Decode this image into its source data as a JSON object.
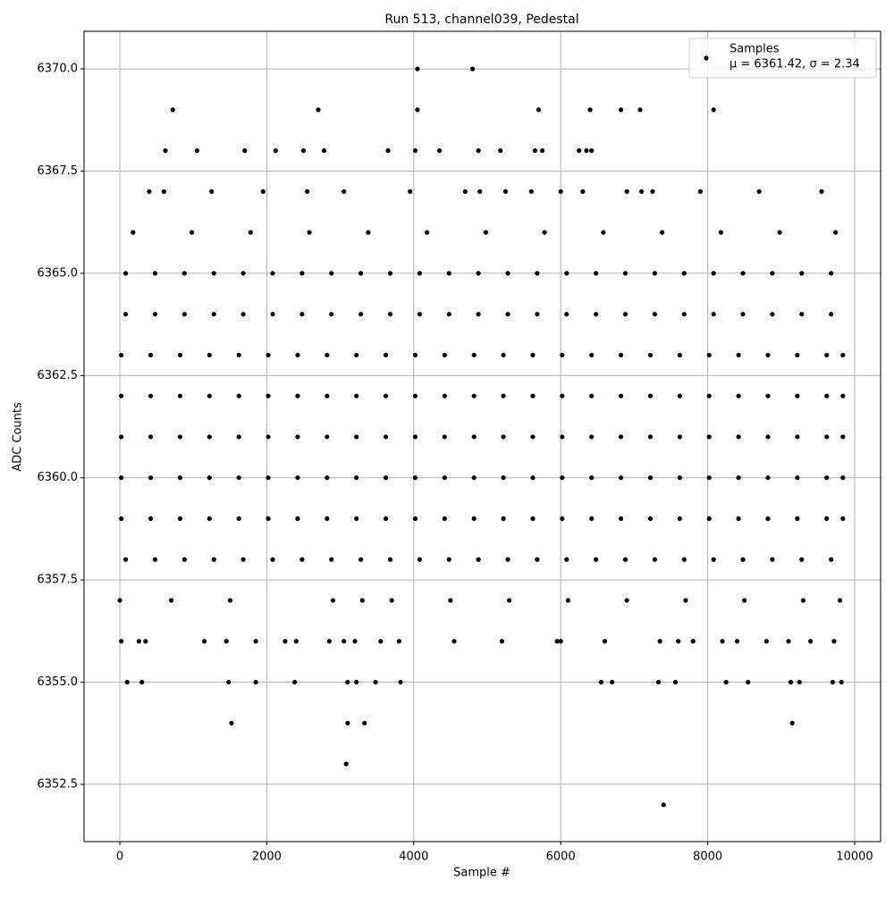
{
  "chart_data": {
    "type": "scatter",
    "title": "Run 513, channel039, Pedestal",
    "x_label": "Sample #",
    "y_label": "ADC Counts",
    "xlim": [
      -487,
      10353
    ],
    "ylim": [
      6351.1,
      6370.92
    ],
    "xticks": [
      0,
      2000,
      4000,
      6000,
      8000,
      10000
    ],
    "yticks": [
      6352.5,
      {
        "value": 6355,
        "label": "6355.0"
      },
      6357.5,
      {
        "value": 6360,
        "label": "6360.0"
      },
      6362.5,
      {
        "value": 6365,
        "label": "6365.0"
      },
      6367.5,
      {
        "value": 6370,
        "label": "6370.0"
      }
    ],
    "grid": true,
    "legend": "upper right",
    "legend_note": "μ = 6361.42, σ = 2.34",
    "x": [
      4050,
      4800,
      720,
      2700,
      4050,
      5700,
      6400,
      6820,
      7080,
      8080,
      620,
      1050,
      1700,
      2120,
      2500,
      2780,
      3650,
      4020,
      4350,
      4880,
      5180,
      5650,
      5750,
      6250,
      6350,
      6420,
      400,
      600,
      1250,
      1950,
      2550,
      3050,
      3950,
      4700,
      4900,
      5250,
      5600,
      6000,
      6300,
      6900,
      7100,
      7250,
      7900,
      8700,
      9550,
      180,
      980,
      1780,
      2580,
      3380,
      4180,
      4980,
      5780,
      6580,
      7380,
      8180,
      8980,
      9740,
      80,
      480,
      880,
      1280,
      1680,
      2080,
      2480,
      2880,
      3280,
      3680,
      4080,
      4480,
      4880,
      5280,
      5680,
      6080,
      6480,
      6880,
      7280,
      7680,
      8080,
      8480,
      8880,
      9280,
      9680,
      80,
      480,
      880,
      1280,
      1680,
      2080,
      2480,
      2880,
      3280,
      3680,
      4080,
      4480,
      4880,
      5280,
      5680,
      6080,
      6480,
      6880,
      7280,
      7680,
      8080,
      8480,
      8880,
      9280,
      9680,
      20,
      420,
      820,
      1220,
      1620,
      2020,
      2420,
      2820,
      3220,
      3620,
      4020,
      4420,
      4820,
      5220,
      5620,
      6020,
      6420,
      6820,
      7220,
      7620,
      8020,
      8420,
      8820,
      9220,
      9620,
      9840,
      20,
      420,
      820,
      1220,
      1620,
      2020,
      2420,
      2820,
      3220,
      3620,
      4020,
      4420,
      4820,
      5220,
      5620,
      6020,
      6420,
      6820,
      7220,
      7620,
      8020,
      8420,
      8820,
      9220,
      9620,
      9840,
      20,
      420,
      820,
      1220,
      1620,
      2020,
      2420,
      2820,
      3220,
      3620,
      4020,
      4420,
      4820,
      5220,
      5620,
      6020,
      6420,
      6820,
      7220,
      7620,
      8020,
      8420,
      8820,
      9220,
      9620,
      9840,
      20,
      420,
      820,
      1220,
      1620,
      2020,
      2420,
      2820,
      3220,
      3620,
      4020,
      4420,
      4820,
      5220,
      5620,
      6020,
      6420,
      6820,
      7220,
      7620,
      8020,
      8420,
      8820,
      9220,
      9620,
      9840,
      20,
      420,
      820,
      1220,
      1620,
      2020,
      2420,
      2820,
      3220,
      3620,
      4020,
      4420,
      4820,
      5220,
      5620,
      6020,
      6420,
      6820,
      7220,
      7620,
      8020,
      8420,
      8820,
      9220,
      9620,
      9840,
      80,
      480,
      880,
      1280,
      1680,
      2080,
      2480,
      2880,
      3280,
      3680,
      4080,
      4480,
      4880,
      5280,
      5680,
      6080,
      6480,
      6880,
      7280,
      7680,
      8080,
      8480,
      8880,
      9280,
      9680,
      0,
      700,
      1500,
      2900,
      3300,
      3700,
      4500,
      5300,
      6100,
      6900,
      7700,
      8500,
      9300,
      9800,
      20,
      260,
      350,
      1150,
      1450,
      1850,
      2250,
      2400,
      2850,
      3050,
      3200,
      3550,
      3800,
      4550,
      5200,
      5950,
      6000,
      6600,
      7350,
      7600,
      7800,
      8200,
      8400,
      8800,
      9100,
      9400,
      9720,
      100,
      300,
      1480,
      1850,
      2380,
      3100,
      3220,
      3480,
      3820,
      6550,
      6700,
      7330,
      7560,
      8250,
      8550,
      9130,
      9250,
      9700,
      9820,
      1520,
      3100,
      3330,
      9150,
      3080,
      7400
    ],
    "series": [
      {
        "name": "Samples",
        "color": "#000000",
        "values": [
          6370,
          6370,
          6369,
          6369,
          6369,
          6369,
          6369,
          6369,
          6369,
          6369,
          6368,
          6368,
          6368,
          6368,
          6368,
          6368,
          6368,
          6368,
          6368,
          6368,
          6368,
          6368,
          6368,
          6368,
          6368,
          6368,
          6367,
          6367,
          6367,
          6367,
          6367,
          6367,
          6367,
          6367,
          6367,
          6367,
          6367,
          6367,
          6367,
          6367,
          6367,
          6367,
          6367,
          6367,
          6367,
          6366,
          6366,
          6366,
          6366,
          6366,
          6366,
          6366,
          6366,
          6366,
          6366,
          6366,
          6366,
          6366,
          6365,
          6365,
          6365,
          6365,
          6365,
          6365,
          6365,
          6365,
          6365,
          6365,
          6365,
          6365,
          6365,
          6365,
          6365,
          6365,
          6365,
          6365,
          6365,
          6365,
          6365,
          6365,
          6365,
          6365,
          6365,
          6364,
          6364,
          6364,
          6364,
          6364,
          6364,
          6364,
          6364,
          6364,
          6364,
          6364,
          6364,
          6364,
          6364,
          6364,
          6364,
          6364,
          6364,
          6364,
          6364,
          6364,
          6364,
          6364,
          6364,
          6364,
          6363,
          6363,
          6363,
          6363,
          6363,
          6363,
          6363,
          6363,
          6363,
          6363,
          6363,
          6363,
          6363,
          6363,
          6363,
          6363,
          6363,
          6363,
          6363,
          6363,
          6363,
          6363,
          6363,
          6363,
          6363,
          6363,
          6362,
          6362,
          6362,
          6362,
          6362,
          6362,
          6362,
          6362,
          6362,
          6362,
          6362,
          6362,
          6362,
          6362,
          6362,
          6362,
          6362,
          6362,
          6362,
          6362,
          6362,
          6362,
          6362,
          6362,
          6362,
          6362,
          6361,
          6361,
          6361,
          6361,
          6361,
          6361,
          6361,
          6361,
          6361,
          6361,
          6361,
          6361,
          6361,
          6361,
          6361,
          6361,
          6361,
          6361,
          6361,
          6361,
          6361,
          6361,
          6361,
          6361,
          6361,
          6361,
          6360,
          6360,
          6360,
          6360,
          6360,
          6360,
          6360,
          6360,
          6360,
          6360,
          6360,
          6360,
          6360,
          6360,
          6360,
          6360,
          6360,
          6360,
          6360,
          6360,
          6360,
          6360,
          6360,
          6360,
          6360,
          6360,
          6359,
          6359,
          6359,
          6359,
          6359,
          6359,
          6359,
          6359,
          6359,
          6359,
          6359,
          6359,
          6359,
          6359,
          6359,
          6359,
          6359,
          6359,
          6359,
          6359,
          6359,
          6359,
          6359,
          6359,
          6359,
          6359,
          6358,
          6358,
          6358,
          6358,
          6358,
          6358,
          6358,
          6358,
          6358,
          6358,
          6358,
          6358,
          6358,
          6358,
          6358,
          6358,
          6358,
          6358,
          6358,
          6358,
          6358,
          6358,
          6358,
          6358,
          6358,
          6357,
          6357,
          6357,
          6357,
          6357,
          6357,
          6357,
          6357,
          6357,
          6357,
          6357,
          6357,
          6357,
          6357,
          6356,
          6356,
          6356,
          6356,
          6356,
          6356,
          6356,
          6356,
          6356,
          6356,
          6356,
          6356,
          6356,
          6356,
          6356,
          6356,
          6356,
          6356,
          6356,
          6356,
          6356,
          6356,
          6356,
          6356,
          6356,
          6356,
          6356,
          6355,
          6355,
          6355,
          6355,
          6355,
          6355,
          6355,
          6355,
          6355,
          6355,
          6355,
          6355,
          6355,
          6355,
          6355,
          6355,
          6355,
          6355,
          6355,
          6354,
          6354,
          6354,
          6354,
          6353,
          6352
        ]
      }
    ]
  }
}
